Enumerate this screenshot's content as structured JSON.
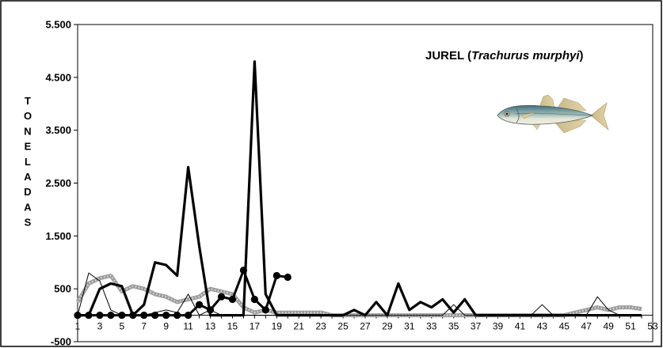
{
  "chart_data": {
    "type": "line",
    "title": {
      "prefix": "JUREL (",
      "scientific": "Trachurus  murphyi",
      "suffix": ")"
    },
    "ylabel": "TONELADAS",
    "xlabel": "",
    "ylim": [
      -500,
      5500
    ],
    "xlim": [
      1,
      53
    ],
    "y_ticks": [
      -500,
      500,
      1500,
      2500,
      3500,
      4500,
      5500
    ],
    "y_tick_labels": [
      "-500",
      "500",
      "1.500",
      "2.500",
      "3.500",
      "4.500",
      "5.500"
    ],
    "x_ticks": [
      1,
      3,
      5,
      7,
      9,
      11,
      13,
      15,
      17,
      19,
      21,
      23,
      25,
      27,
      29,
      31,
      33,
      35,
      37,
      39,
      41,
      43,
      45,
      47,
      49,
      51,
      53
    ],
    "x_tick_labels": [
      "1",
      "3",
      "5",
      "7",
      "9",
      "11",
      "13",
      "15",
      "17",
      "19",
      "21",
      "23",
      "25",
      "27",
      "29",
      "31",
      "33",
      "35",
      "37",
      "39",
      "41",
      "43",
      "45",
      "47",
      "49",
      "51",
      "53"
    ],
    "grid": false,
    "legend": "none",
    "series": [
      {
        "style": "thin",
        "color": "#000000",
        "x": [
          1,
          2,
          3,
          4,
          5,
          6,
          7,
          8,
          9,
          10,
          11,
          12,
          13,
          14,
          15,
          16,
          17,
          18,
          19,
          20,
          21,
          22,
          23,
          24,
          25,
          26,
          27,
          28,
          29,
          30,
          31,
          32,
          33,
          34,
          35,
          36,
          37,
          38,
          39,
          40,
          41,
          42,
          43,
          44,
          45,
          46,
          47,
          48,
          49,
          50,
          51,
          52
        ],
        "y": [
          0,
          800,
          650,
          100,
          0,
          0,
          0,
          50,
          100,
          50,
          400,
          0,
          100,
          0,
          0,
          0,
          0,
          0,
          0,
          0,
          0,
          0,
          0,
          0,
          0,
          0,
          0,
          0,
          0,
          0,
          0,
          0,
          0,
          0,
          200,
          0,
          0,
          0,
          0,
          0,
          0,
          0,
          200,
          0,
          0,
          0,
          0,
          350,
          100,
          0,
          0,
          0
        ]
      },
      {
        "style": "thick",
        "color": "#000000",
        "x": [
          1,
          2,
          3,
          4,
          5,
          6,
          7,
          8,
          9,
          10,
          11,
          12,
          13,
          14,
          15,
          16,
          17,
          18,
          19,
          20,
          21,
          22,
          23,
          24,
          25,
          26,
          27,
          28,
          29,
          30,
          31,
          32,
          33,
          34,
          35,
          36,
          37,
          38,
          39,
          40,
          41,
          42,
          43,
          44,
          45,
          46,
          47,
          48,
          49,
          50,
          51,
          52
        ],
        "y": [
          0,
          0,
          500,
          600,
          550,
          0,
          200,
          1000,
          950,
          750,
          2800,
          1300,
          0,
          0,
          0,
          0,
          4800,
          400,
          0,
          0,
          0,
          0,
          0,
          0,
          0,
          100,
          0,
          250,
          0,
          600,
          100,
          250,
          150,
          300,
          50,
          300,
          0,
          0,
          0,
          0,
          0,
          0,
          0,
          0,
          0,
          0,
          0,
          0,
          0,
          0,
          0,
          0
        ]
      },
      {
        "style": "markers",
        "color": "#000000",
        "x": [
          1,
          2,
          3,
          4,
          5,
          6,
          7,
          8,
          9,
          10,
          11,
          12,
          13,
          14,
          15,
          16,
          17,
          18,
          19,
          20
        ],
        "y": [
          0,
          0,
          0,
          0,
          0,
          0,
          0,
          0,
          0,
          0,
          0,
          200,
          100,
          350,
          300,
          850,
          300,
          100,
          750,
          720
        ]
      },
      {
        "style": "dotted-gray",
        "color": "#888888",
        "x": [
          1,
          2,
          3,
          4,
          5,
          6,
          7,
          8,
          9,
          10,
          11,
          12,
          13,
          14,
          15,
          16,
          17,
          18,
          19,
          20,
          21,
          22,
          23,
          24,
          25,
          26,
          27,
          28,
          29,
          30,
          31,
          32,
          33,
          34,
          35,
          36,
          37,
          38,
          39,
          40,
          41,
          42,
          43,
          44,
          45,
          46,
          47,
          48,
          49,
          50,
          51,
          52
        ],
        "y": [
          250,
          600,
          700,
          750,
          450,
          550,
          500,
          400,
          350,
          250,
          300,
          350,
          500,
          450,
          400,
          150,
          50,
          100,
          50,
          50,
          50,
          50,
          50,
          0,
          0,
          0,
          0,
          0,
          0,
          0,
          0,
          0,
          0,
          0,
          0,
          0,
          0,
          0,
          0,
          0,
          0,
          0,
          0,
          0,
          0,
          50,
          100,
          150,
          100,
          150,
          150,
          120
        ]
      }
    ]
  },
  "image": {
    "fish": "fish-illustration"
  }
}
